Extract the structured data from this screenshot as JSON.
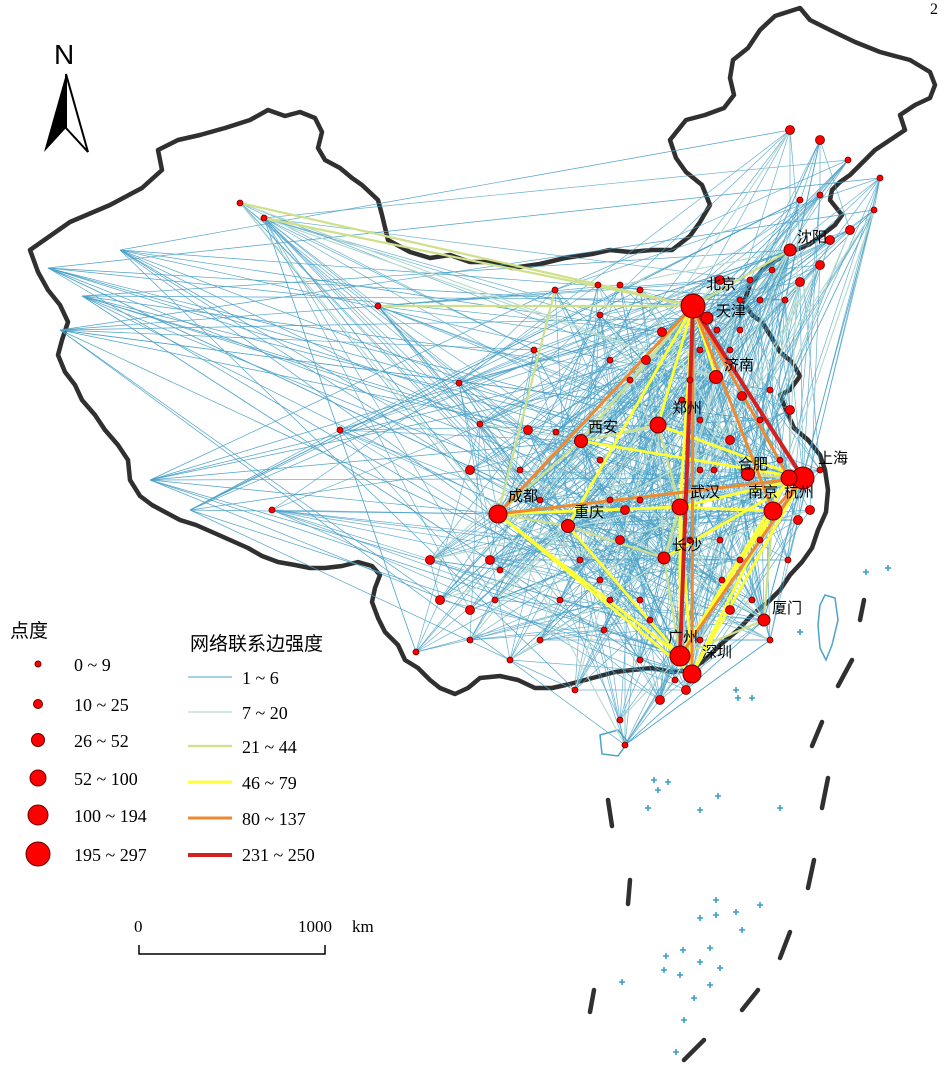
{
  "corner_mark": "2",
  "north_arrow": {
    "label": "N"
  },
  "cities": [
    {
      "name": "北京"
    },
    {
      "name": "天津"
    },
    {
      "name": "沈阳"
    },
    {
      "name": "济南"
    },
    {
      "name": "郑州"
    },
    {
      "name": "西安"
    },
    {
      "name": "上海"
    },
    {
      "name": "合肥"
    },
    {
      "name": "南京"
    },
    {
      "name": "杭州"
    },
    {
      "name": "武汉"
    },
    {
      "name": "成都"
    },
    {
      "name": "重庆"
    },
    {
      "name": "长沙"
    },
    {
      "name": "厦门"
    },
    {
      "name": "广州"
    },
    {
      "name": "深圳"
    }
  ],
  "legend_degree": {
    "title": "点度",
    "items": [
      {
        "label": "0 ~ 9",
        "size_class": 1
      },
      {
        "label": "10 ~ 25",
        "size_class": 2
      },
      {
        "label": "26 ~ 52",
        "size_class": 3
      },
      {
        "label": "52 ~ 100",
        "size_class": 4
      },
      {
        "label": "100 ~ 194",
        "size_class": 5
      },
      {
        "label": "195 ~ 297",
        "size_class": 6
      }
    ],
    "node_color": "#ff0000"
  },
  "legend_edges": {
    "title": "网络联系边强度",
    "items": [
      {
        "label": "1 ~ 6",
        "color": "#4da3c8"
      },
      {
        "label": "7 ~ 20",
        "color": "#b9dcd0"
      },
      {
        "label": "21 ~ 44",
        "color": "#cfe08a"
      },
      {
        "label": "46 ~ 79",
        "color": "#ffff33"
      },
      {
        "label": "80 ~ 137",
        "color": "#ee8833"
      },
      {
        "label": "231 ~ 250",
        "color": "#d42020"
      }
    ]
  },
  "scale_bar": {
    "start_label": "0",
    "end_label": "1000",
    "unit": "km"
  }
}
